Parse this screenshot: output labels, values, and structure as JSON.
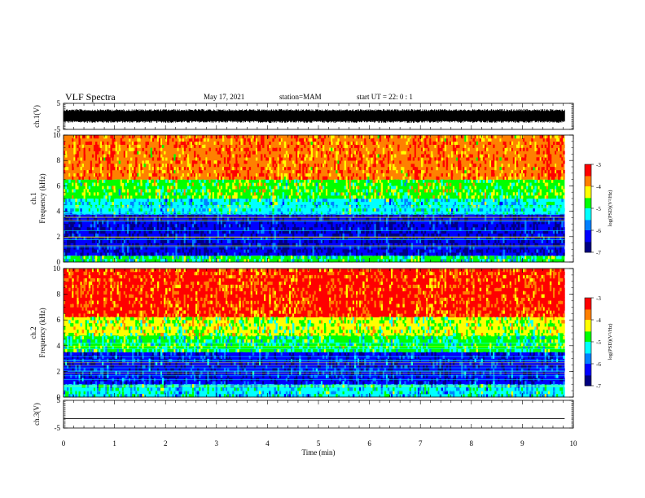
{
  "header": {
    "title": "VLF Spectra",
    "date": "May 17, 2021",
    "station": "station=MAM",
    "start": "start  UT  =   22: 0  : 1"
  },
  "chart_data": [
    {
      "type": "line",
      "panel": "ch1-waveform",
      "ylabel": "ch.1(V)",
      "ylim": [
        -5,
        5
      ],
      "yticks": [
        -5,
        5
      ],
      "x_range_min": [
        0,
        9.83
      ],
      "signal_band_V": [
        -2.5,
        2.8
      ],
      "signal_center_V": 0.3
    },
    {
      "type": "heatmap",
      "panel": "ch1-spectrogram",
      "ylabel_channel": "ch.1",
      "ylabel": "Frequency (kHz)",
      "ylim": [
        0,
        10
      ],
      "yticks": [
        0,
        2,
        4,
        6,
        8,
        10
      ],
      "x_range_min": [
        0,
        9.83
      ],
      "band_pattern": [
        {
          "freq_kHz": [
            0,
            0.5
          ],
          "log_psd": -5.0
        },
        {
          "freq_kHz": [
            0.5,
            3.8
          ],
          "log_psd": -6.5
        },
        {
          "freq_kHz": [
            3.8,
            5.0
          ],
          "log_psd": -5.2
        },
        {
          "freq_kHz": [
            5.0,
            6.5
          ],
          "log_psd": -4.6
        },
        {
          "freq_kHz": [
            6.5,
            10
          ],
          "log_psd": -3.6
        }
      ],
      "colorbar": {
        "label": "log(PSD)(V²/Hz)",
        "range": [
          -7,
          -3
        ],
        "ticks": [
          -3,
          -4,
          -5,
          -6,
          -7
        ]
      }
    },
    {
      "type": "heatmap",
      "panel": "ch2-spectrogram",
      "ylabel_channel": "ch.2",
      "ylabel": "Frequency (kHz)",
      "ylim": [
        0,
        10
      ],
      "yticks": [
        0,
        2,
        4,
        6,
        8,
        10
      ],
      "x_range_min": [
        0,
        9.83
      ],
      "band_pattern": [
        {
          "freq_kHz": [
            0,
            1.0
          ],
          "log_psd": -5.3
        },
        {
          "freq_kHz": [
            1.0,
            3.5
          ],
          "log_psd": -6.3
        },
        {
          "freq_kHz": [
            3.5,
            4.8
          ],
          "log_psd": -5.0
        },
        {
          "freq_kHz": [
            4.8,
            6.2
          ],
          "log_psd": -4.5
        },
        {
          "freq_kHz": [
            6.2,
            10
          ],
          "log_psd": -3.5
        }
      ],
      "colorbar": {
        "label": "log(PSD)(V²/Hz)",
        "range": [
          -7,
          -3
        ],
        "ticks": [
          -3,
          -4,
          -5,
          -6,
          -7
        ]
      }
    },
    {
      "type": "line",
      "panel": "ch3-waveform",
      "ylabel": "ch.3(V)",
      "ylim": [
        -5,
        5
      ],
      "yticks": [
        -5,
        5
      ],
      "x_range_min": [
        0,
        9.83
      ],
      "flat_value_V": -1.6
    }
  ],
  "xaxis": {
    "label": "Time (min)",
    "lim": [
      0,
      10
    ],
    "ticks": [
      "0",
      "1",
      "2",
      "3",
      "4",
      "5",
      "6",
      "7",
      "8",
      "9",
      "10"
    ]
  },
  "colormap": [
    "#000080",
    "#0000ff",
    "#0080ff",
    "#00ffff",
    "#00ff00",
    "#ffff00",
    "#ff8000",
    "#ff0000"
  ]
}
